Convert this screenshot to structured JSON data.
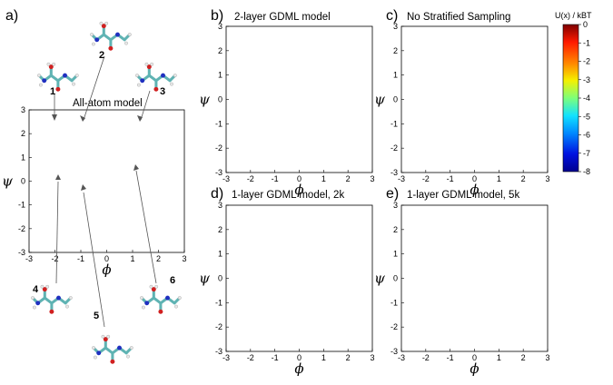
{
  "figure": {
    "panel_a": {
      "label": "a)",
      "title": "All-atom model",
      "molecule_labels": [
        "1",
        "2",
        "3",
        "4",
        "5",
        "6"
      ]
    },
    "panel_b": {
      "label": "b)",
      "title": "2-layer GDML model"
    },
    "panel_c": {
      "label": "c)",
      "title": "No Stratified Sampling"
    },
    "panel_d": {
      "label": "d)",
      "title": "1-layer GDML model, 2k"
    },
    "panel_e": {
      "label": "e)",
      "title": "1-layer GDML model, 5k"
    },
    "x_axis_symbol": "ϕ",
    "y_axis_symbol": "ψ",
    "tick_labels": [
      "-3",
      "-2",
      "-1",
      "0",
      "1",
      "2",
      "3"
    ],
    "colorbar": {
      "label": "U(x) / kBT",
      "ticks": [
        "0",
        "-1",
        "-2",
        "-3",
        "-4",
        "-5",
        "-6",
        "-7",
        "-8"
      ],
      "colors": [
        "#7f0000",
        "#ff2000",
        "#ff8a00",
        "#f2f000",
        "#7dff7a",
        "#14e0ff",
        "#0080ff",
        "#0010e0",
        "#00008f"
      ]
    }
  }
}
